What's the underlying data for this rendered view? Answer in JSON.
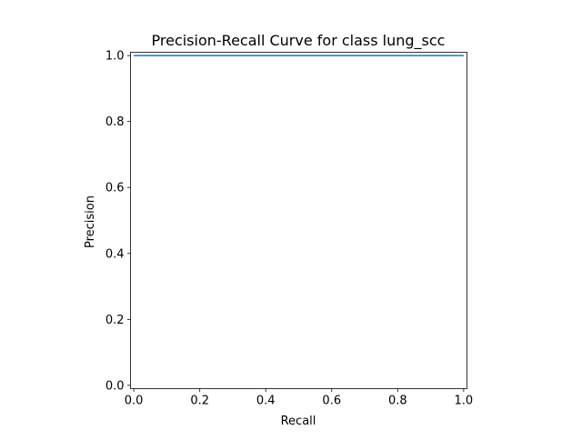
{
  "chart_data": {
    "type": "line",
    "title": "Precision-Recall Curve for class lung_scc",
    "xlabel": "Recall",
    "ylabel": "Precision",
    "xlim": [
      -0.01,
      1.01
    ],
    "ylim": [
      -0.01,
      1.01
    ],
    "x_ticks": [
      0.0,
      0.2,
      0.4,
      0.6,
      0.8,
      1.0
    ],
    "x_tick_labels": [
      "0.0",
      "0.2",
      "0.4",
      "0.6",
      "0.8",
      "1.0"
    ],
    "y_ticks": [
      0.0,
      0.2,
      0.4,
      0.6,
      0.8,
      1.0
    ],
    "y_tick_labels": [
      "0.0",
      "0.2",
      "0.4",
      "0.6",
      "0.8",
      "1.0"
    ],
    "grid": false,
    "series": [
      {
        "color": "#1f77b4",
        "x": [
          0.0,
          1.0
        ],
        "y": [
          1.0,
          1.0
        ]
      }
    ]
  }
}
